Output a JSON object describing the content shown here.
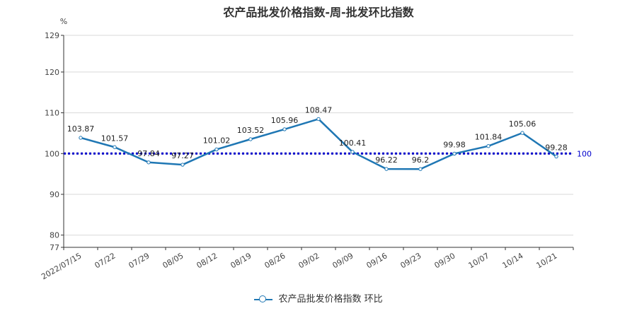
{
  "title": "农产品批发价格指数-周-批发环比指数",
  "chart_data": {
    "type": "line",
    "title": "农产品批发价格指数-周-批发环比指数",
    "ylabel": "%",
    "xlabel": "",
    "categories": [
      "2022/07/15",
      "07/22",
      "07/29",
      "08/05",
      "08/12",
      "08/19",
      "08/26",
      "09/02",
      "09/09",
      "09/16",
      "09/23",
      "09/30",
      "10/07",
      "10/14",
      "10/21"
    ],
    "series": [
      {
        "name": "农产品批发价格指数 环比",
        "values": [
          103.87,
          101.57,
          97.84,
          97.27,
          101.02,
          103.52,
          105.96,
          108.47,
          100.41,
          96.22,
          96.2,
          99.98,
          101.84,
          105.06,
          99.28
        ],
        "color": "#1f77b4"
      }
    ],
    "value_labels": [
      "103.87",
      "101.57",
      "97.84",
      "97.27",
      "101.02",
      "103.52",
      "105.96",
      "108.47",
      "100.41",
      "96.22",
      "96.2",
      "99.98",
      "101.84",
      "105.06",
      "99.28"
    ],
    "ylim": [
      77,
      129
    ],
    "yticks": [
      77,
      80,
      90,
      100,
      110,
      120,
      129
    ],
    "reference_line": {
      "value": 100,
      "label": "100",
      "color": "#0000cc",
      "style": "dotted"
    },
    "grid": true,
    "legend_position": "bottom-center"
  },
  "legend": {
    "label": "农产品批发价格指数 环比"
  }
}
